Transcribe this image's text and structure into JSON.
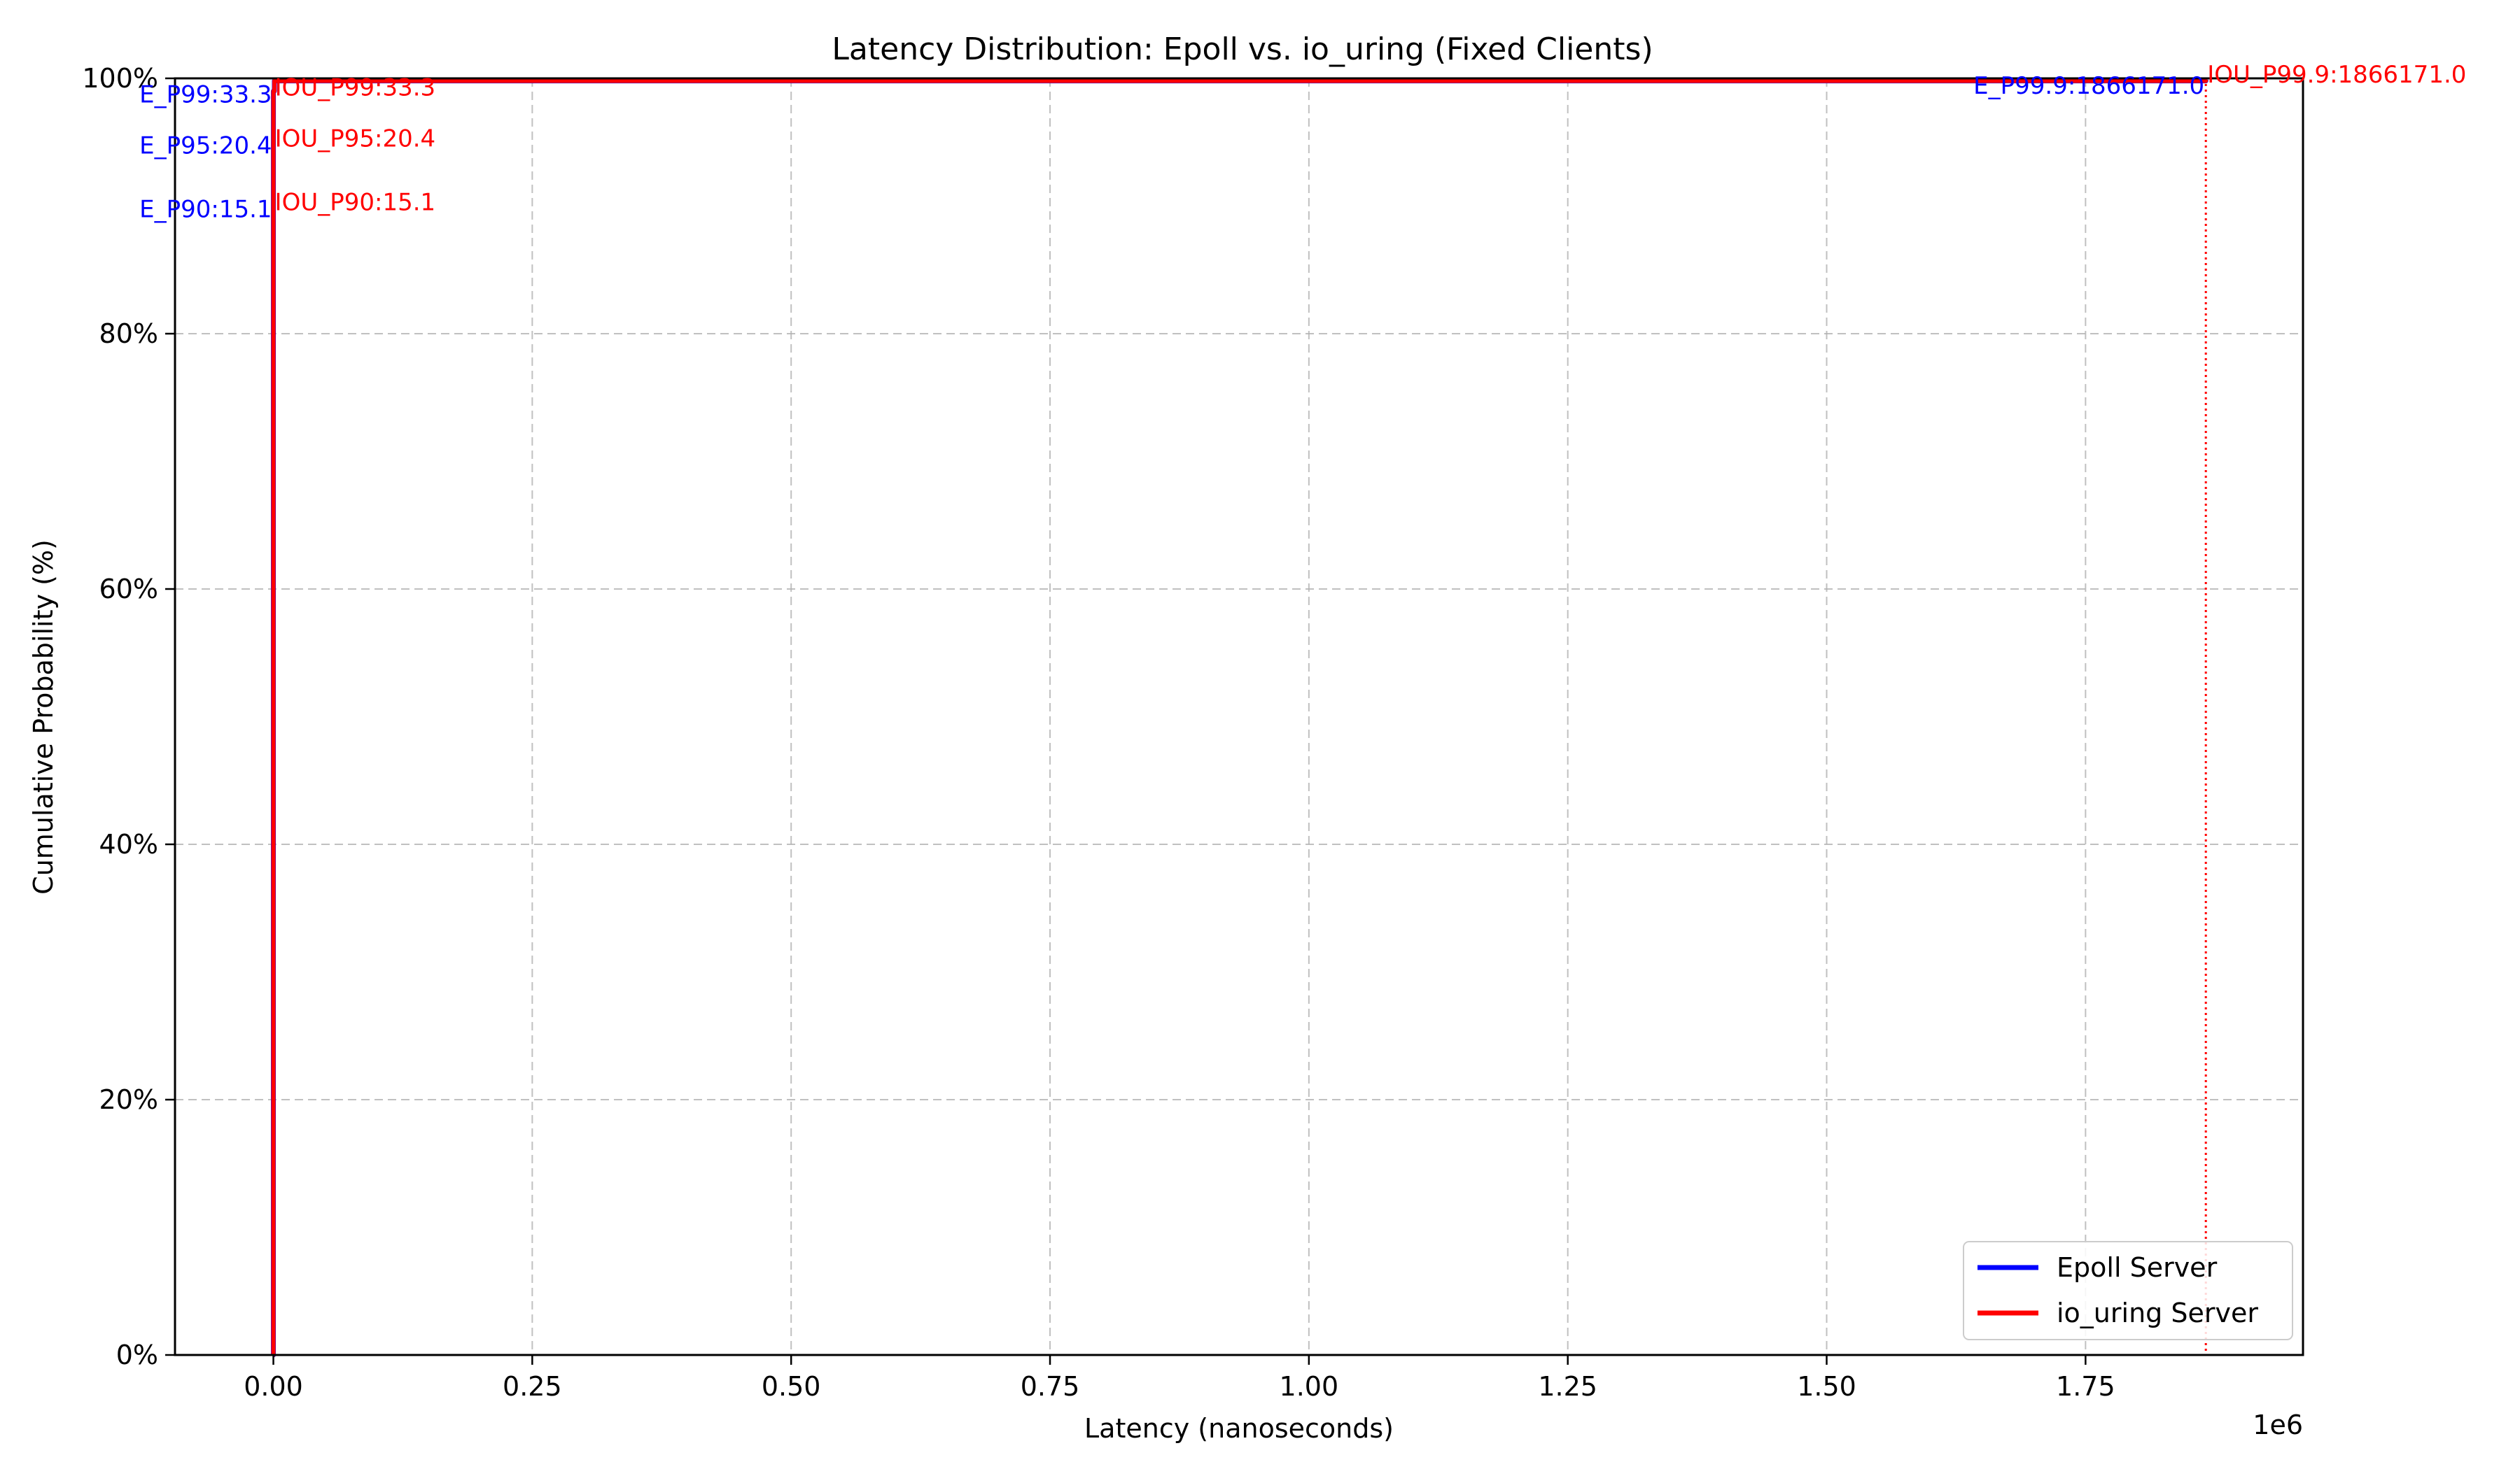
{
  "chart_data": {
    "type": "line",
    "title": "Latency Distribution: Epoll vs. io_uring (Fixed Clients)",
    "xlabel": "Latency (nanoseconds)",
    "ylabel": "Cumulative Probability (%)",
    "x_offset_label": "1e6",
    "xlim": [
      -95000,
      1960000
    ],
    "ylim": [
      0,
      100
    ],
    "x_ticks": [
      0,
      250000,
      500000,
      750000,
      1000000,
      1250000,
      1500000,
      1750000
    ],
    "x_tick_labels": [
      "0.00",
      "0.25",
      "0.50",
      "0.75",
      "1.00",
      "1.25",
      "1.50",
      "1.75"
    ],
    "y_ticks": [
      0,
      20,
      40,
      60,
      80,
      100
    ],
    "y_tick_labels": [
      "0%",
      "20%",
      "40%",
      "60%",
      "80%",
      "100%"
    ],
    "grid": true,
    "legend_position": "lower-right",
    "series": [
      {
        "name": "Epoll Server",
        "color": "#0000ff",
        "x": [
          0,
          5,
          10,
          15.1,
          20.4,
          33.3,
          1000,
          1866171.0
        ],
        "y": [
          0,
          40,
          80,
          90,
          95,
          99,
          99.8,
          99.9
        ]
      },
      {
        "name": "io_uring Server",
        "color": "#ff0000",
        "x": [
          0,
          5,
          10,
          15.1,
          20.4,
          33.3,
          1000,
          1866171.0
        ],
        "y": [
          0,
          40,
          80,
          90,
          95,
          99,
          99.8,
          99.9
        ]
      }
    ],
    "annotations": [
      {
        "text": "E_P90:15.1",
        "x": 15.1,
        "y": 90,
        "color": "#0000ff",
        "side": "left",
        "dy": 4
      },
      {
        "text": "E_P95:20.4",
        "x": 20.4,
        "y": 95,
        "color": "#0000ff",
        "side": "left",
        "dy": 4
      },
      {
        "text": "E_P99:33.3",
        "x": 33.3,
        "y": 99,
        "color": "#0000ff",
        "side": "left",
        "dy": 4
      },
      {
        "text": "E_P99.9:1866171.0",
        "x": 1866171.0,
        "y": 99.9,
        "color": "#0000ff",
        "side": "left",
        "dy": 8
      },
      {
        "text": "IOU_P90:15.1",
        "x": 15.1,
        "y": 90,
        "color": "#ff0000",
        "side": "right",
        "dy": -6
      },
      {
        "text": "IOU_P95:20.4",
        "x": 20.4,
        "y": 95,
        "color": "#ff0000",
        "side": "right",
        "dy": -6
      },
      {
        "text": "IOU_P99:33.3",
        "x": 33.3,
        "y": 99,
        "color": "#ff0000",
        "side": "right",
        "dy": -6
      },
      {
        "text": "IOU_P99.9:1866171.0",
        "x": 1866171.0,
        "y": 99.9,
        "color": "#ff0000",
        "side": "right",
        "dy": -8
      }
    ],
    "percentile_lines": [
      {
        "x": 1866171.0,
        "color": "#ff0000",
        "style": "dotted"
      }
    ]
  }
}
